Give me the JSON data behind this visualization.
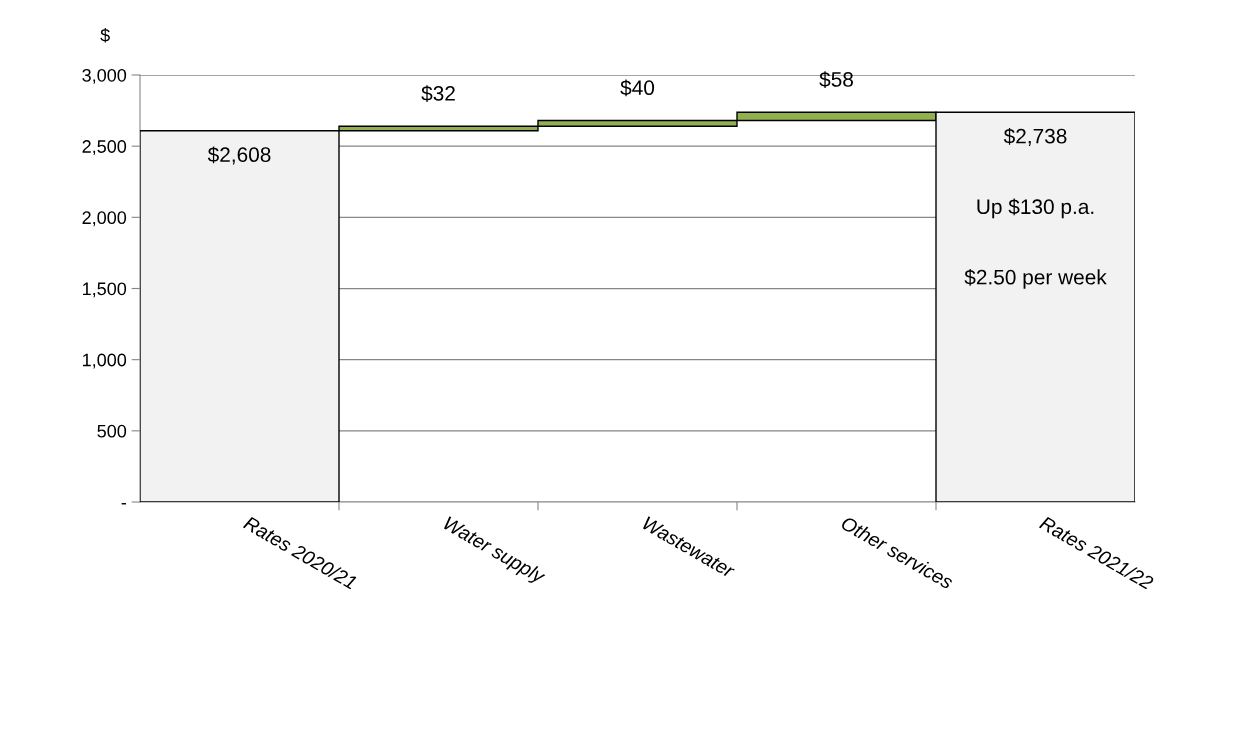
{
  "chart_data": {
    "type": "bar",
    "ylabel": "$",
    "categories": [
      "Rates 2020/21",
      "Water supply",
      "Wastewater",
      "Other services",
      "Rates 2021/22"
    ],
    "values": [
      2608,
      32,
      40,
      58,
      2738
    ],
    "base": [
      0,
      2608,
      2640,
      2680,
      0
    ],
    "colors": [
      "#f2f2f2",
      "#92b050",
      "#92b050",
      "#92b050",
      "#f2f2f2"
    ],
    "value_labels": [
      "$2,608",
      "$32",
      "$40",
      "$58",
      "$2,738"
    ],
    "annotations": [
      "Up $130 p.a.",
      "$2.50 per week"
    ],
    "ylim": [
      0,
      3000
    ],
    "yticks": [
      {
        "value": 0,
        "label": "-"
      },
      500,
      {
        "value": 1000,
        "label": "1,000"
      },
      {
        "value": 1500,
        "label": "1,500"
      },
      {
        "value": 2000,
        "label": "2,000"
      },
      {
        "value": 2500,
        "label": "2,500"
      },
      {
        "value": 3000,
        "label": "3,000"
      }
    ],
    "grid": "y"
  }
}
